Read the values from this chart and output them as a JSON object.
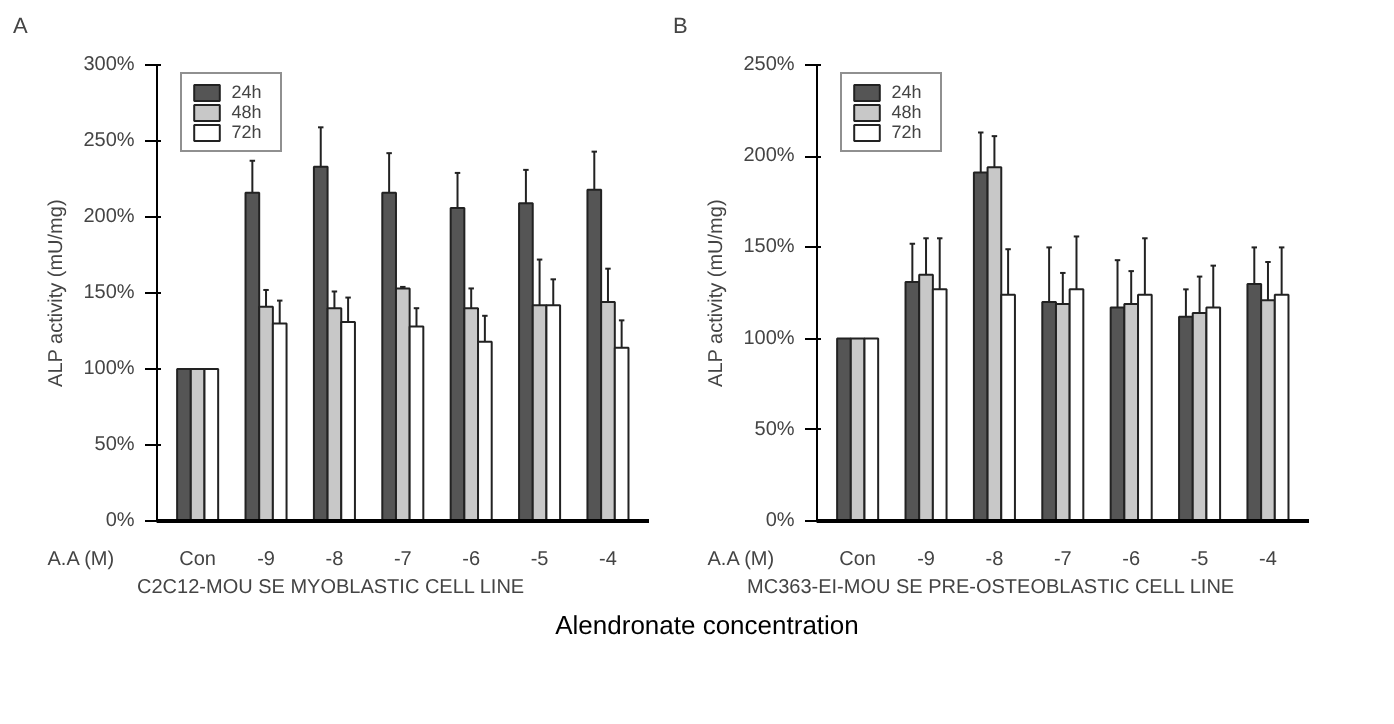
{
  "chart_data": [
    {
      "type": "bar",
      "title": "A",
      "xlabel": "C2C12-MOU SE MYOBLASTIC CELL LINE",
      "ylabel": "ALP activity (mU/mg)",
      "categories": [
        "Con",
        "-9",
        "-8",
        "-7",
        "-6",
        "-5",
        "-4"
      ],
      "series": [
        {
          "name": "24h",
          "color": "#555555",
          "values": [
            100,
            216,
            233,
            216,
            206,
            209,
            218
          ],
          "errors": [
            null,
            [
              216,
              237
            ],
            [
              233,
              259
            ],
            [
              216,
              242
            ],
            [
              206,
              229
            ],
            [
              209,
              231
            ],
            [
              218,
              243
            ]
          ]
        },
        {
          "name": "48h",
          "color": "#c8c8c8",
          "values": [
            100,
            141,
            140,
            153,
            140,
            142,
            144
          ],
          "errors": [
            null,
            [
              141,
              152
            ],
            [
              140,
              151
            ],
            [
              153,
              154
            ],
            [
              140,
              153
            ],
            [
              142,
              172
            ],
            [
              144,
              166
            ]
          ]
        },
        {
          "name": "72h",
          "color": "#ffffff",
          "values": [
            100,
            130,
            131,
            128,
            118,
            142,
            114
          ],
          "errors": [
            null,
            [
              130,
              145
            ],
            [
              131,
              147
            ],
            [
              128,
              140
            ],
            [
              118,
              135
            ],
            [
              142,
              159
            ],
            [
              114,
              132
            ]
          ]
        }
      ],
      "ylim": [
        0,
        300
      ],
      "yticks": [
        {
          "value": 0,
          "label": "0%"
        },
        {
          "value": 50,
          "label": "50%"
        },
        {
          "value": 100,
          "label": "100%"
        },
        {
          "value": 150,
          "label": "150%"
        },
        {
          "value": 200,
          "label": "200%"
        },
        {
          "value": 250,
          "label": "250%"
        },
        {
          "value": 300,
          "label": "300%"
        }
      ],
      "legend": "top left",
      "grid": false,
      "annotations": [
        "A.A (M)",
        "Alendronate  concentration"
      ]
    },
    {
      "type": "bar",
      "title": "B",
      "xlabel": "MC363-EI-MOU SE PRE-OSTEOBLASTIC CELL LINE",
      "ylabel": "ALP activity (mU/mg)",
      "categories": [
        "Con",
        "-9",
        "-8",
        "-7",
        "-6",
        "-5",
        "-4"
      ],
      "series": [
        {
          "name": "24h",
          "color": "#555555",
          "values": [
            100,
            131,
            191,
            120,
            117,
            112,
            130
          ],
          "errors": [
            null,
            [
              131,
              152
            ],
            [
              191,
              213
            ],
            [
              120,
              150
            ],
            [
              117,
              143
            ],
            [
              112,
              127
            ],
            [
              130,
              150
            ]
          ]
        },
        {
          "name": "48h",
          "color": "#c8c8c8",
          "values": [
            100,
            135,
            194,
            119,
            119,
            114,
            121
          ],
          "errors": [
            null,
            [
              135,
              155
            ],
            [
              194,
              211
            ],
            [
              119,
              136
            ],
            [
              119,
              137
            ],
            [
              114,
              134
            ],
            [
              121,
              142
            ]
          ]
        },
        {
          "name": "72h",
          "color": "#ffffff",
          "values": [
            100,
            127,
            124,
            127,
            124,
            117,
            124
          ],
          "errors": [
            null,
            [
              127,
              155
            ],
            [
              124,
              149
            ],
            [
              127,
              156
            ],
            [
              124,
              155
            ],
            [
              117,
              140
            ],
            [
              124,
              150
            ]
          ]
        }
      ],
      "ylim": [
        0,
        250
      ],
      "yticks": [
        {
          "value": 0,
          "label": "0%"
        },
        {
          "value": 50,
          "label": "50%"
        },
        {
          "value": 100,
          "label": "100%"
        },
        {
          "value": 150,
          "label": "150%"
        },
        {
          "value": 200,
          "label": "200%"
        },
        {
          "value": 250,
          "label": "250%"
        }
      ],
      "legend": "top left",
      "grid": false,
      "annotations": [
        "A.A (M)"
      ]
    }
  ]
}
